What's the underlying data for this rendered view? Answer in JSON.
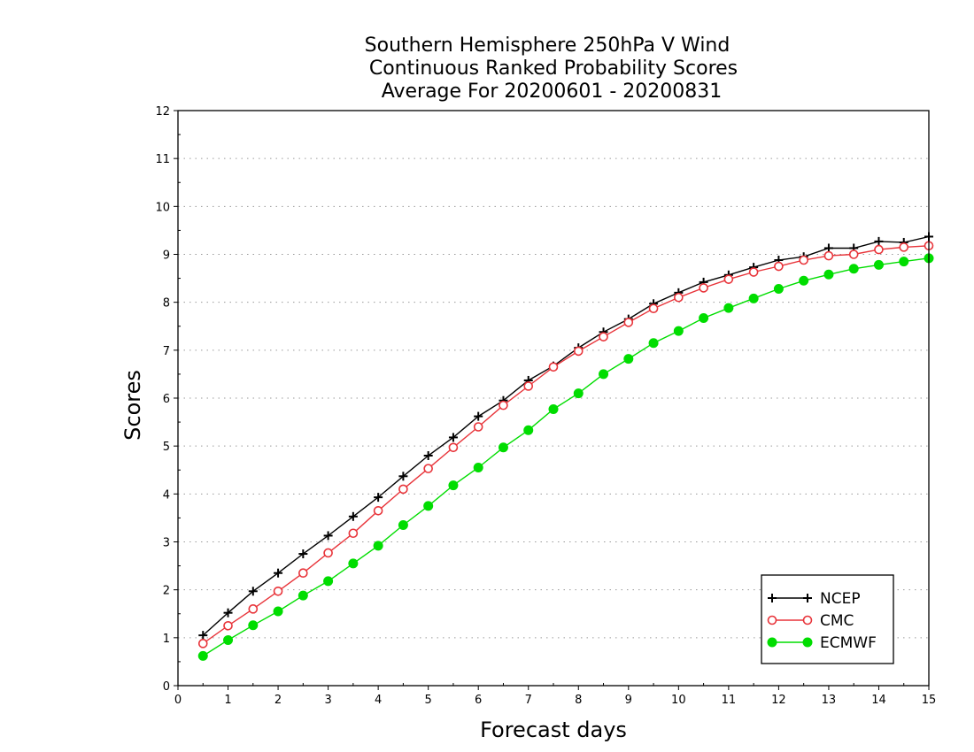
{
  "chart_data": {
    "type": "line",
    "title_lines": [
      "Southern Hemisphere 250hPa V Wind",
      "Continuous Ranked Probability Scores",
      "Average For 20200601 - 20200831"
    ],
    "xlabel": "Forecast days",
    "ylabel": "Scores",
    "xlim": [
      0,
      15
    ],
    "ylim": [
      0,
      12
    ],
    "xticks": [
      "0",
      "1",
      "2",
      "3",
      "4",
      "5",
      "6",
      "7",
      "8",
      "9",
      "10",
      "11",
      "12",
      "13",
      "14",
      "15"
    ],
    "yticks": [
      "0",
      "1",
      "2",
      "3",
      "4",
      "5",
      "6",
      "7",
      "8",
      "9",
      "10",
      "11",
      "12"
    ],
    "grid": true,
    "legend_position": "bottom-right",
    "x": [
      0.5,
      1,
      1.5,
      2,
      2.5,
      3,
      3.5,
      4,
      4.5,
      5,
      5.5,
      6,
      6.5,
      7,
      7.5,
      8,
      8.5,
      9,
      9.5,
      10,
      10.5,
      11,
      11.5,
      12,
      12.5,
      13,
      13.5,
      14,
      14.5,
      15
    ],
    "series": [
      {
        "name": "NCEP",
        "color": "#000000",
        "marker": "plus",
        "values": [
          1.05,
          1.52,
          1.97,
          2.35,
          2.75,
          3.13,
          3.53,
          3.93,
          4.37,
          4.8,
          5.18,
          5.62,
          5.95,
          6.37,
          6.67,
          7.05,
          7.38,
          7.65,
          7.97,
          8.2,
          8.42,
          8.57,
          8.73,
          8.88,
          8.95,
          9.13,
          9.13,
          9.27,
          9.25,
          9.37
        ]
      },
      {
        "name": "CMC",
        "color": "#e8343a",
        "marker": "open-circle",
        "values": [
          0.88,
          1.25,
          1.6,
          1.97,
          2.35,
          2.77,
          3.18,
          3.65,
          4.1,
          4.53,
          4.97,
          5.4,
          5.85,
          6.25,
          6.65,
          6.98,
          7.28,
          7.58,
          7.87,
          8.1,
          8.3,
          8.48,
          8.63,
          8.75,
          8.88,
          8.97,
          9.0,
          9.1,
          9.15,
          9.18
        ]
      },
      {
        "name": "ECMWF",
        "color": "#00dd00",
        "marker": "filled-circle",
        "values": [
          0.62,
          0.95,
          1.26,
          1.55,
          1.88,
          2.18,
          2.55,
          2.92,
          3.35,
          3.75,
          4.18,
          4.55,
          4.97,
          5.33,
          5.77,
          6.1,
          6.5,
          6.82,
          7.15,
          7.4,
          7.67,
          7.88,
          8.08,
          8.28,
          8.45,
          8.58,
          8.7,
          8.78,
          8.85,
          8.92
        ]
      }
    ]
  }
}
